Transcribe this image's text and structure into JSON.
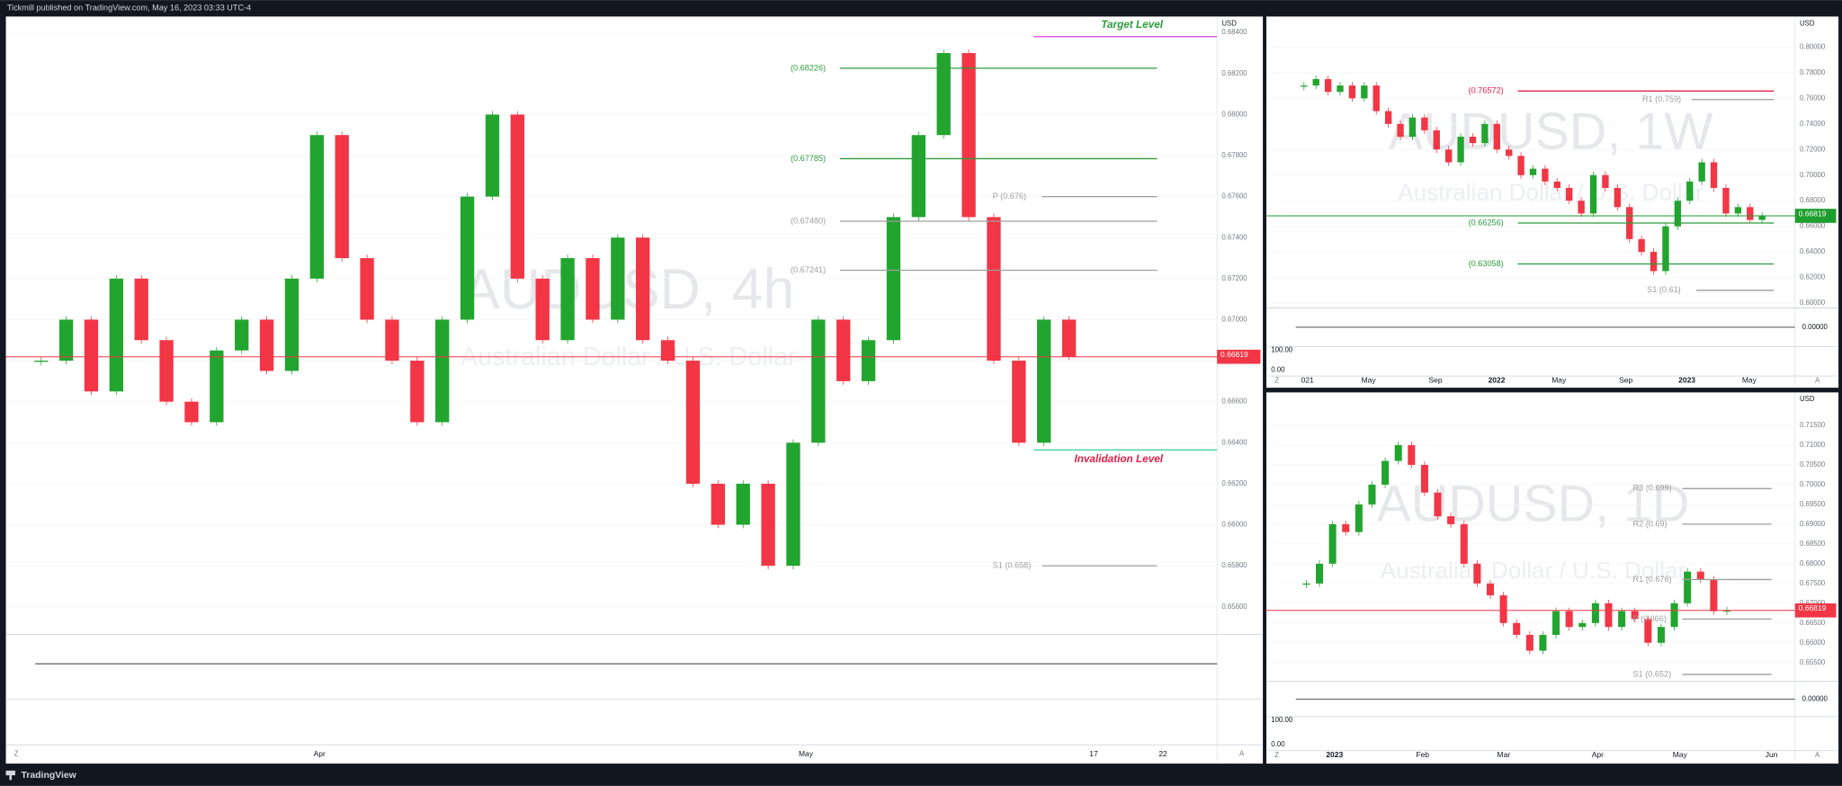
{
  "header": {
    "text": "Tickmill published on TradingView.com, May 16, 2023 03:33 UTC-4"
  },
  "footer": {
    "brand": "TradingView"
  },
  "controls": {
    "zoom": "Z",
    "auto": "A"
  },
  "chart_data": [
    {
      "type": "candlestick",
      "title": "AUDUSD, 4h",
      "subtitle": "Australian Dollar / U.S. Dollar",
      "currency": "USD",
      "up_color": "#22a52f",
      "down_color": "#f23645",
      "values": [
        0.668,
        0.67,
        0.6665,
        0.672,
        0.669,
        0.666,
        0.665,
        0.6685,
        0.67,
        0.6675,
        0.672,
        0.679,
        0.673,
        0.67,
        0.668,
        0.665,
        0.67,
        0.676,
        0.68,
        0.672,
        0.669,
        0.673,
        0.67,
        0.674,
        0.669,
        0.668,
        0.662,
        0.66,
        0.662,
        0.658,
        0.664,
        0.67,
        0.667,
        0.669,
        0.675,
        0.679,
        0.683,
        0.675,
        0.668,
        0.664,
        0.67,
        0.6682
      ],
      "ylim": [
        0.65494,
        0.68478
      ],
      "yticks": [
        {
          "value": 0.656,
          "label": "0.65600"
        },
        {
          "value": 0.658,
          "label": "0.65800"
        },
        {
          "value": 0.66,
          "label": "0.66000"
        },
        {
          "value": 0.662,
          "label": "0.66200"
        },
        {
          "value": 0.664,
          "label": "0.66400"
        },
        {
          "value": 0.666,
          "label": "0.66600"
        },
        {
          "value": 0.668,
          "label": "0.66800"
        },
        {
          "value": 0.67,
          "label": "0.67000"
        },
        {
          "value": 0.672,
          "label": "0.67200"
        },
        {
          "value": 0.674,
          "label": "0.67400"
        },
        {
          "value": 0.676,
          "label": "0.67600"
        },
        {
          "value": 0.678,
          "label": "0.67800"
        },
        {
          "value": 0.68,
          "label": "0.68000"
        },
        {
          "value": 0.682,
          "label": "0.68200"
        },
        {
          "value": 0.684,
          "label": "0.68400"
        }
      ],
      "last_price": 0.66819,
      "last_color": "#f23645",
      "levels": [
        {
          "label": "(0.68226)",
          "value": 0.68226,
          "color": "#2e9b3e"
        },
        {
          "label": "(0.67785)",
          "value": 0.67785,
          "color": "#2e9b3e"
        },
        {
          "label": "(0.67480)",
          "value": 0.6748,
          "color": "#9e9e9e"
        },
        {
          "label": "(0.67241)",
          "value": 0.67241,
          "color": "#9e9e9e"
        },
        {
          "label": "P (0.676)",
          "value": 0.676,
          "color": "#9e9e9e"
        },
        {
          "label": "S1 (0.658)",
          "value": 0.658,
          "color": "#9e9e9e"
        }
      ],
      "annotations": [
        {
          "text": "Target Level",
          "value": 0.6838,
          "color": "#2e9b3e"
        },
        {
          "text": "Invalidation Level",
          "value": 0.66365,
          "color": "#e0204a"
        }
      ],
      "x_labels": [
        "Apr",
        "May",
        "17",
        "22"
      ],
      "indicator_ticks": []
    },
    {
      "type": "candlestick",
      "title": "AUDUSD, 1W",
      "subtitle": "Australian Dollar / U.S. Dollar",
      "currency": "USD",
      "up_color": "#22a52f",
      "down_color": "#f23645",
      "values": [
        0.77,
        0.775,
        0.765,
        0.77,
        0.76,
        0.77,
        0.75,
        0.74,
        0.73,
        0.745,
        0.735,
        0.72,
        0.71,
        0.73,
        0.725,
        0.74,
        0.72,
        0.715,
        0.7,
        0.705,
        0.695,
        0.69,
        0.68,
        0.67,
        0.7,
        0.69,
        0.675,
        0.65,
        0.64,
        0.625,
        0.66,
        0.68,
        0.695,
        0.71,
        0.69,
        0.67,
        0.675,
        0.665,
        0.6682
      ],
      "ylim": [
        0.5963,
        0.8239
      ],
      "yticks": [
        {
          "value": 0.6,
          "label": "0.60000"
        },
        {
          "value": 0.62,
          "label": "0.62000"
        },
        {
          "value": 0.64,
          "label": "0.64000"
        },
        {
          "value": 0.66,
          "label": "0.66000"
        },
        {
          "value": 0.68,
          "label": "0.68000"
        },
        {
          "value": 0.7,
          "label": "0.70000"
        },
        {
          "value": 0.72,
          "label": "0.72000"
        },
        {
          "value": 0.74,
          "label": "0.74000"
        },
        {
          "value": 0.76,
          "label": "0.76000"
        },
        {
          "value": 0.78,
          "label": "0.78000"
        },
        {
          "value": 0.8,
          "label": "0.80000"
        }
      ],
      "last_price": 0.66819,
      "last_color": "#1e9e2e",
      "levels": [
        {
          "label": "(0.76572)",
          "value": 0.76572,
          "color": "#e0204a"
        },
        {
          "label": "R1 (0.759)",
          "value": 0.759,
          "color": "#9e9e9e"
        },
        {
          "label": "(0.66256)",
          "value": 0.66256,
          "color": "#2e9b3e"
        },
        {
          "label": "(0.63058)",
          "value": 0.63058,
          "color": "#2e9b3e"
        },
        {
          "label": "S1 (0.61)",
          "value": 0.61,
          "color": "#9e9e9e"
        }
      ],
      "annotations": [],
      "x_labels": [
        "021",
        "May",
        "Sep",
        "2022",
        "May",
        "Sep",
        "2023",
        "May"
      ],
      "indicator_ticks": [
        "0.00000",
        "100.00",
        "0.00"
      ]
    },
    {
      "type": "candlestick",
      "title": "AUDUSD, 1D",
      "subtitle": "Australian Dollar / U.S. Dollar",
      "currency": "USD",
      "up_color": "#22a52f",
      "down_color": "#f23645",
      "values": [
        0.675,
        0.68,
        0.69,
        0.688,
        0.695,
        0.7,
        0.706,
        0.71,
        0.705,
        0.698,
        0.692,
        0.69,
        0.68,
        0.675,
        0.672,
        0.665,
        0.662,
        0.658,
        0.662,
        0.668,
        0.664,
        0.665,
        0.67,
        0.664,
        0.668,
        0.666,
        0.66,
        0.664,
        0.67,
        0.678,
        0.676,
        0.668,
        0.6682
      ],
      "ylim": [
        0.65024,
        0.72333
      ],
      "yticks": [
        {
          "value": 0.655,
          "label": "0.65500"
        },
        {
          "value": 0.66,
          "label": "0.66000"
        },
        {
          "value": 0.665,
          "label": "0.66500"
        },
        {
          "value": 0.67,
          "label": "0.67000"
        },
        {
          "value": 0.675,
          "label": "0.67500"
        },
        {
          "value": 0.68,
          "label": "0.68000"
        },
        {
          "value": 0.685,
          "label": "0.68500"
        },
        {
          "value": 0.69,
          "label": "0.69000"
        },
        {
          "value": 0.695,
          "label": "0.69500"
        },
        {
          "value": 0.7,
          "label": "0.70000"
        },
        {
          "value": 0.705,
          "label": "0.70500"
        },
        {
          "value": 0.71,
          "label": "0.71000"
        },
        {
          "value": 0.715,
          "label": "0.71500"
        }
      ],
      "last_price": 0.66819,
      "last_color": "#f23645",
      "levels": [
        {
          "label": "R3 (0.699)",
          "value": 0.699,
          "color": "#9e9e9e"
        },
        {
          "label": "R2 (0.69)",
          "value": 0.69,
          "color": "#9e9e9e"
        },
        {
          "label": "R1 (0.676)",
          "value": 0.676,
          "color": "#9e9e9e"
        },
        {
          "label": "P (0.666)",
          "value": 0.666,
          "color": "#9e9e9e"
        },
        {
          "label": "S1 (0.652)",
          "value": 0.652,
          "color": "#9e9e9e"
        }
      ],
      "annotations": [],
      "x_labels": [
        "2023",
        "Feb",
        "Mar",
        "Apr",
        "May",
        "Jun"
      ],
      "indicator_ticks": [
        "0.00000",
        "100.00",
        "0.00"
      ]
    }
  ]
}
